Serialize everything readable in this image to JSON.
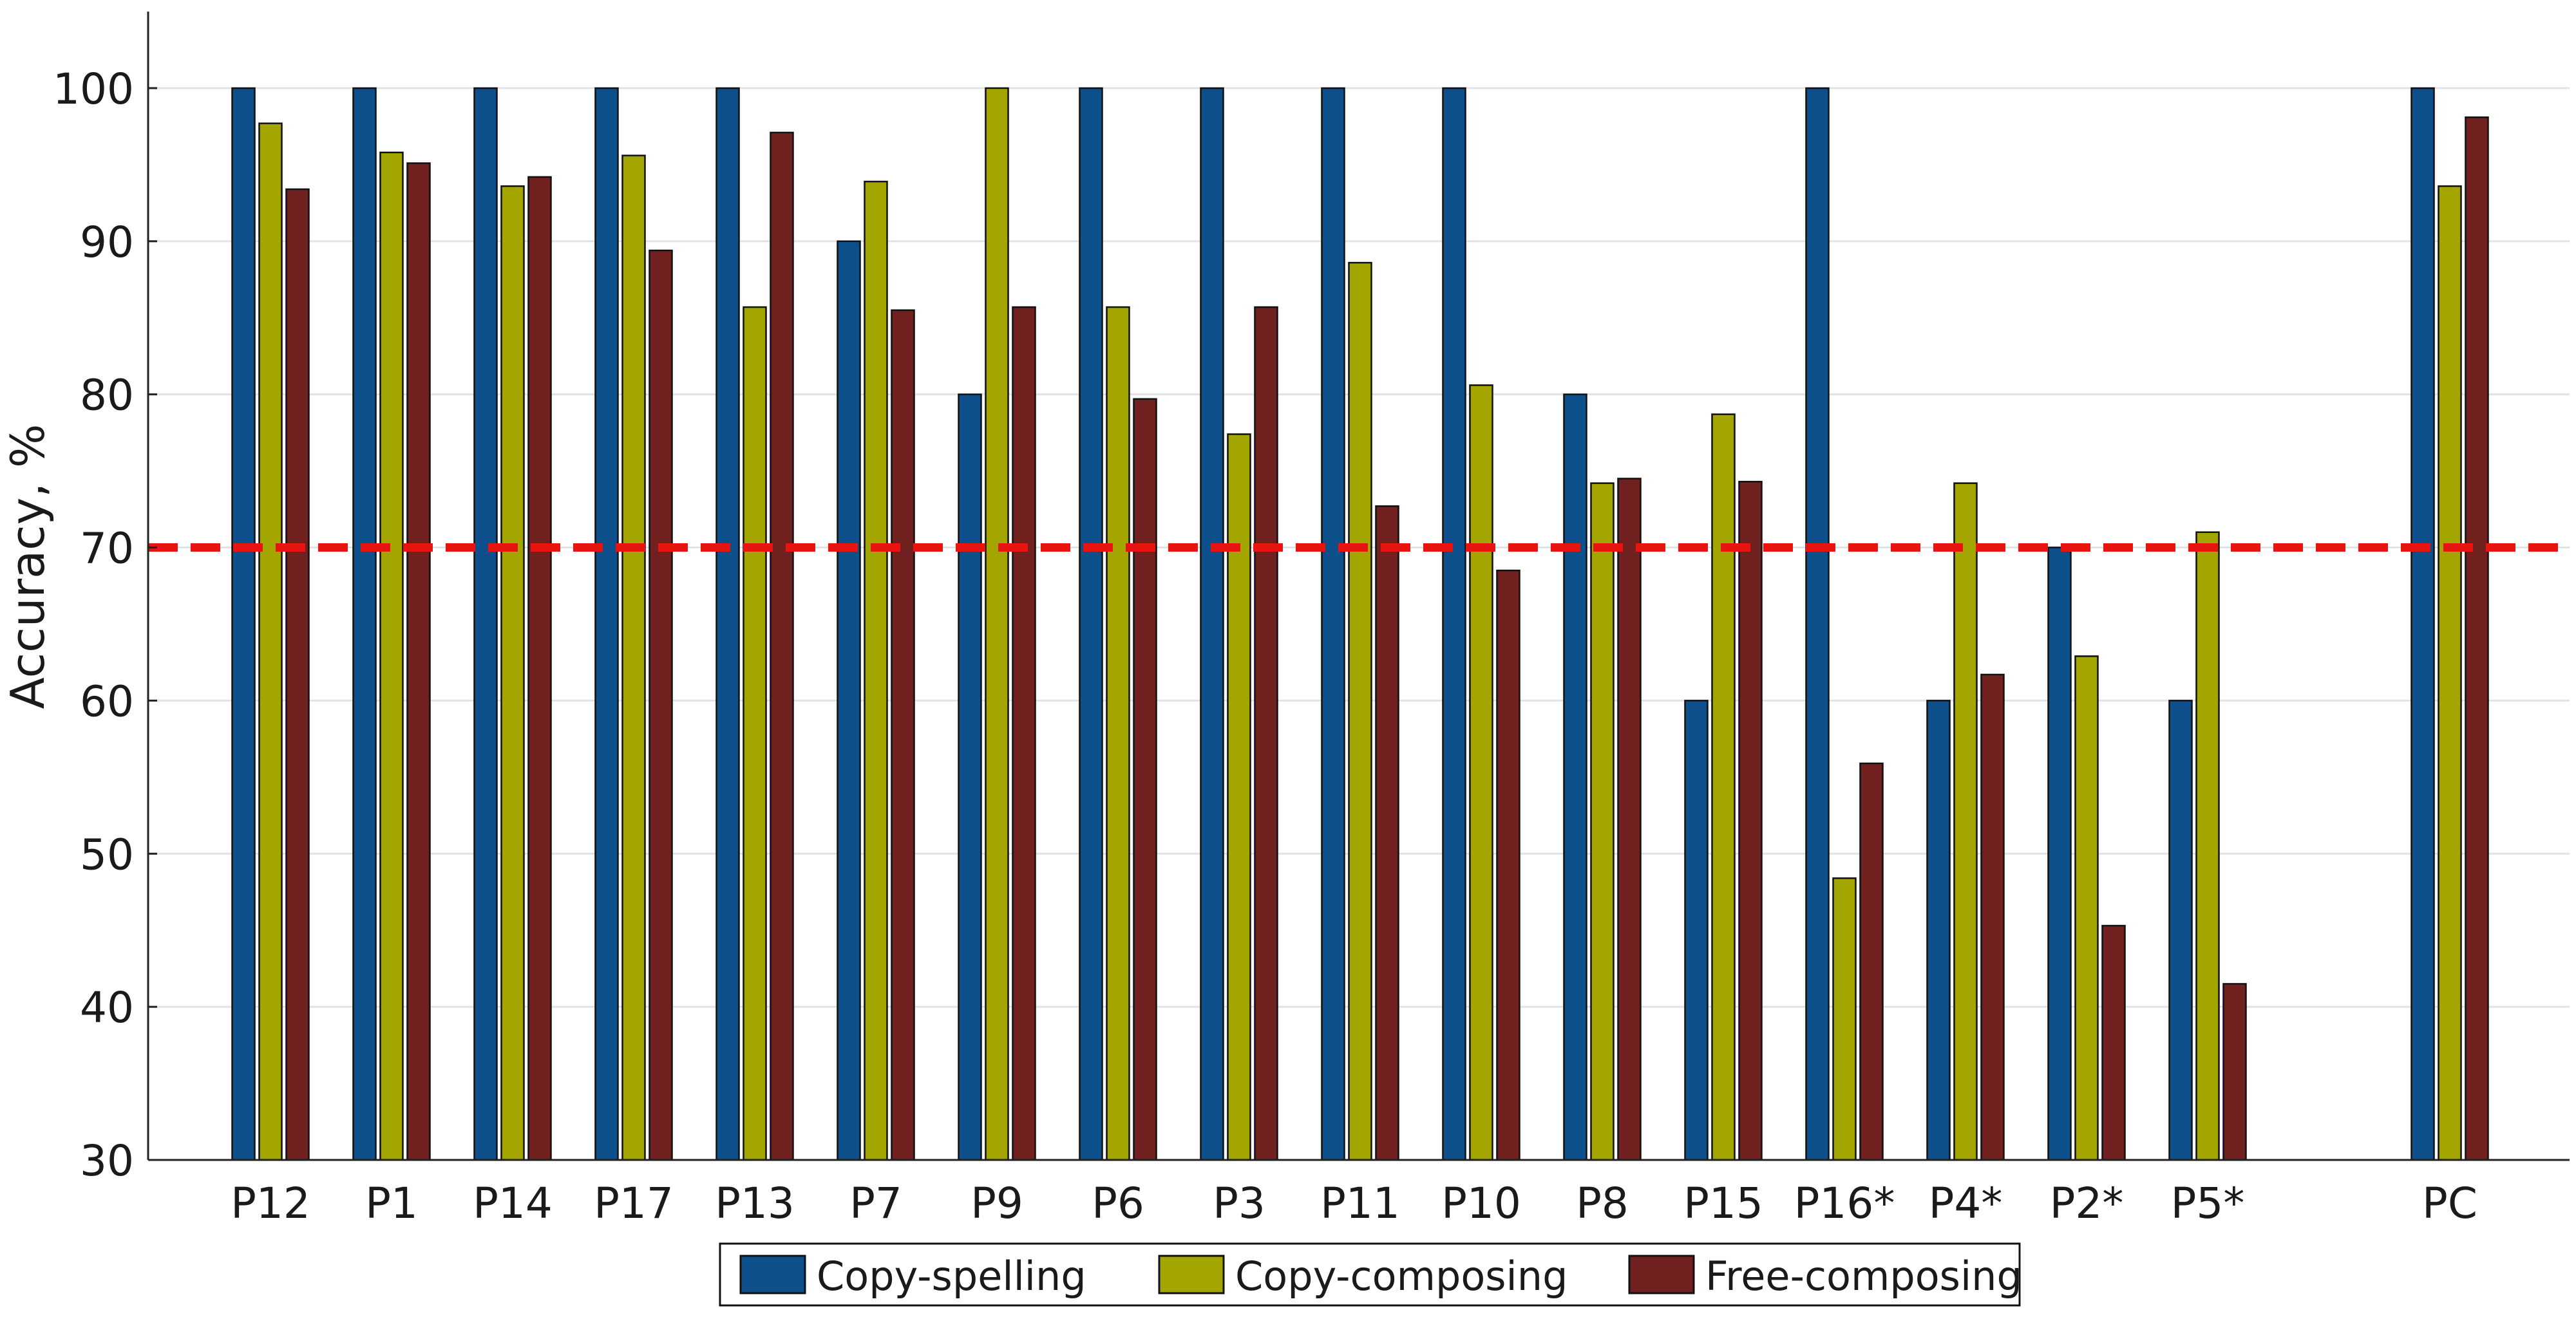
{
  "chart_data": {
    "type": "bar",
    "ylabel": "Accuracy, %",
    "xlabel": "",
    "ylim": [
      30,
      105
    ],
    "yticks": [
      30,
      40,
      50,
      60,
      70,
      80,
      90,
      100
    ],
    "grid": "horizontal",
    "categories": [
      "P12",
      "P1",
      "P14",
      "P17",
      "P13",
      "P7",
      "P9",
      "P6",
      "P3",
      "P11",
      "P10",
      "P8",
      "P15",
      "P16*",
      "P4*",
      "P2*",
      "P5*",
      "PC"
    ],
    "category_slots": [
      1,
      2,
      3,
      4,
      5,
      6,
      7,
      8,
      9,
      10,
      11,
      12,
      13,
      14,
      15,
      16,
      17,
      19
    ],
    "series": [
      {
        "name": "Copy-spelling",
        "color": "#0d4f8b",
        "values": [
          100,
          100,
          100,
          100,
          100,
          90,
          80,
          100,
          100,
          100,
          100,
          80,
          60,
          100,
          60,
          70,
          60,
          100
        ]
      },
      {
        "name": "Copy-composing",
        "color": "#a3a500",
        "values": [
          97.7,
          95.8,
          93.6,
          95.6,
          85.7,
          93.9,
          100,
          85.7,
          77.4,
          88.6,
          80.6,
          74.2,
          78.7,
          48.4,
          74.2,
          62.9,
          71.0,
          93.6
        ]
      },
      {
        "name": "Free-composing",
        "color": "#70211f",
        "values": [
          93.4,
          95.1,
          94.2,
          89.4,
          97.1,
          85.5,
          85.7,
          79.7,
          85.7,
          72.7,
          68.5,
          74.5,
          74.3,
          55.9,
          61.7,
          45.3,
          41.5,
          98.1
        ]
      }
    ],
    "reference_line": {
      "value": 70,
      "color": "#e8140f",
      "style": "dashed"
    },
    "legend_position": "bottom"
  }
}
